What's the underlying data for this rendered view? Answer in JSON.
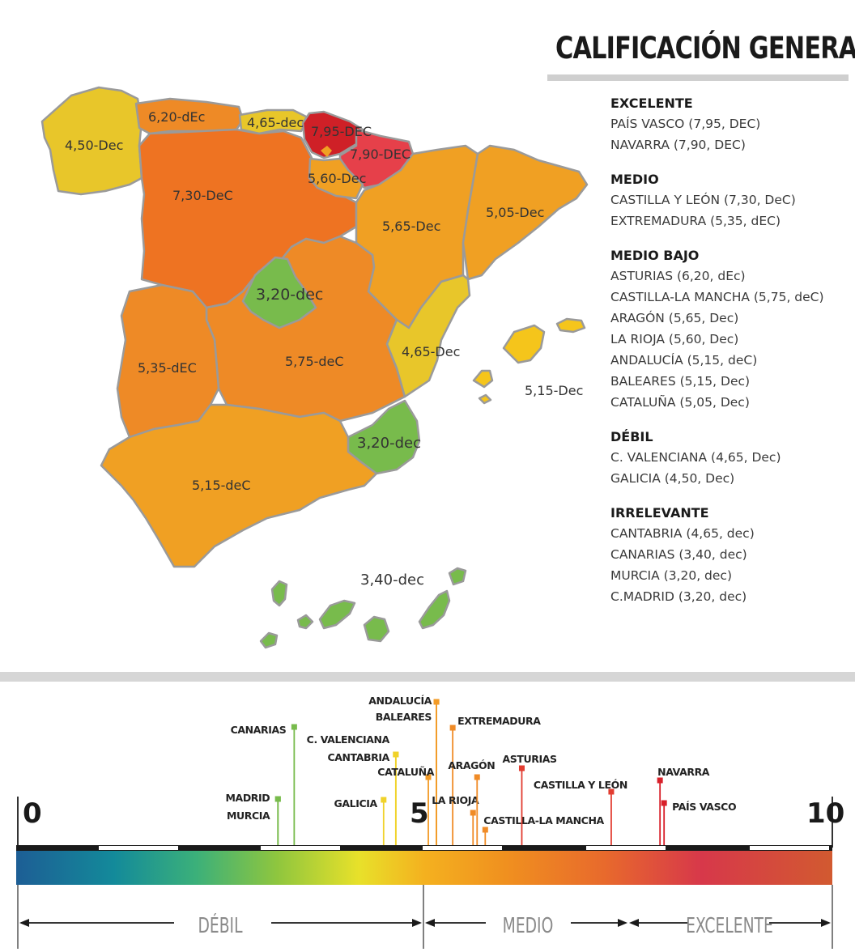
{
  "title": "CALIFICACIÓN GENERAL",
  "legend": {
    "groups": [
      {
        "title": "EXCELENTE",
        "items": [
          "PAÍS VASCO (7,95, DEC)",
          "NAVARRA (7,90, DEC)"
        ]
      },
      {
        "title": "MEDIO",
        "items": [
          "CASTILLA Y LEÓN (7,30, DeC)",
          "EXTREMADURA (5,35, dEC)"
        ]
      },
      {
        "title": "MEDIO BAJO",
        "items": [
          "ASTURIAS (6,20, dEc)",
          "CASTILLA-LA MANCHA (5,75, deC)",
          "ARAGÓN (5,65, Dec)",
          "LA RIOJA (5,60, Dec)",
          "ANDALUCÍA (5,15, deC)",
          "BALEARES (5,15, Dec)",
          "CATALUÑA (5,05, Dec)"
        ]
      },
      {
        "title": "DÉBIL",
        "items": [
          "C. VALENCIANA (4,65, Dec)",
          "GALICIA (4,50, Dec)"
        ]
      },
      {
        "title": "IRRELEVANTE",
        "items": [
          "CANTABRIA (4,65, dec)",
          "CANARIAS (3,40, dec)",
          "MURCIA (3,20, dec)",
          "C.MADRID (3,20, dec)"
        ]
      }
    ]
  },
  "map": {
    "regions": {
      "galicia": {
        "label": "4,50-Dec",
        "color": "#e8c62a"
      },
      "asturias": {
        "label": "6,20-dEc",
        "color": "#ee8a26"
      },
      "cantabria": {
        "label": "4,65-dec",
        "color": "#e8c62a"
      },
      "pais_vasco": {
        "label": "7,95-DEC",
        "color": "#cf2027"
      },
      "navarra": {
        "label": "7,90-DEC",
        "color": "#e6404a"
      },
      "la_rioja": {
        "label": "5,60-Dec",
        "color": "#f0a023"
      },
      "castilla_leon": {
        "label": "7,30-DeC",
        "color": "#ee7322"
      },
      "aragon": {
        "label": "5,65-Dec",
        "color": "#f0a023"
      },
      "cataluna": {
        "label": "5,05-Dec",
        "color": "#f0a023"
      },
      "madrid": {
        "label": "3,20-dec",
        "color": "#78bb4c"
      },
      "castilla_la_mancha": {
        "label": "5,75-deC",
        "color": "#ee8a26"
      },
      "extremadura": {
        "label": "5,35-dEC",
        "color": "#ee8a26"
      },
      "valencia": {
        "label": "4,65-Dec",
        "color": "#e8c62a"
      },
      "baleares": {
        "label": "5,15-Dec",
        "color": "#f5c51b"
      },
      "murcia": {
        "label": "3,20-dec",
        "color": "#78bb4c"
      },
      "andalucia": {
        "label": "5,15-deC",
        "color": "#f0a023"
      },
      "canarias": {
        "label": "3,40-dec",
        "color": "#78bb4c"
      }
    }
  },
  "scale": {
    "min_label": "0",
    "mid_label": "5",
    "max_label": "10",
    "bands": [
      "DÉBIL",
      "MEDIO",
      "EXCELENTE"
    ],
    "markers": [
      {
        "label": "MADRID",
        "value": 3.2,
        "color": "#78bb4c"
      },
      {
        "label": "MURCIA",
        "value": 3.2,
        "color": "#78bb4c"
      },
      {
        "label": "CANARIAS",
        "value": 3.4,
        "color": "#78bb4c"
      },
      {
        "label": "GALICIA",
        "value": 4.5,
        "color": "#f0d22a"
      },
      {
        "label": "C. VALENCIANA",
        "value": 4.65,
        "color": "#f0d22a"
      },
      {
        "label": "CANTABRIA",
        "value": 4.65,
        "color": "#f0d22a"
      },
      {
        "label": "CATALUÑA",
        "value": 5.05,
        "color": "#f29a25"
      },
      {
        "label": "ANDALUCÍA",
        "value": 5.15,
        "color": "#f29a25"
      },
      {
        "label": "BALEARES",
        "value": 5.15,
        "color": "#f29a25"
      },
      {
        "label": "EXTREMADURA",
        "value": 5.35,
        "color": "#f08b26"
      },
      {
        "label": "LA RIOJA",
        "value": 5.6,
        "color": "#f08b26"
      },
      {
        "label": "ARAGÓN",
        "value": 5.65,
        "color": "#f08b26"
      },
      {
        "label": "CASTILLA-LA MANCHA",
        "value": 5.75,
        "color": "#f08b26"
      },
      {
        "label": "ASTURIAS",
        "value": 6.2,
        "color": "#e23c30"
      },
      {
        "label": "CASTILLA Y LEÓN",
        "value": 7.3,
        "color": "#e23c30"
      },
      {
        "label": "NAVARRA",
        "value": 7.9,
        "color": "#d8202a"
      },
      {
        "label": "PAÍS VASCO",
        "value": 7.95,
        "color": "#d8202a"
      }
    ]
  }
}
